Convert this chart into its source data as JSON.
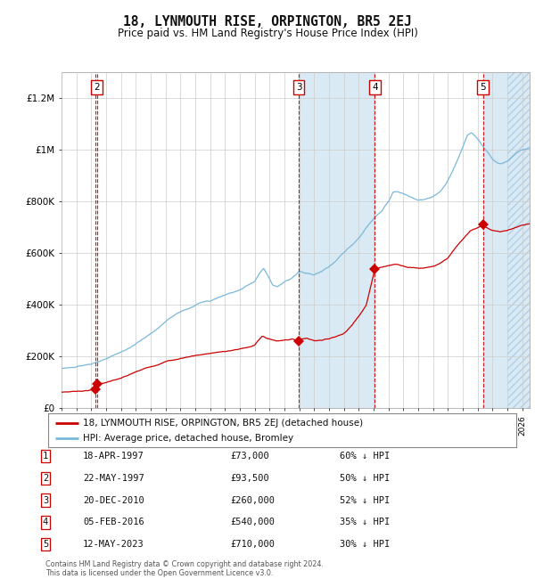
{
  "title": "18, LYNMOUTH RISE, ORPINGTON, BR5 2EJ",
  "subtitle": "Price paid vs. HM Land Registry's House Price Index (HPI)",
  "legend_line1": "18, LYNMOUTH RISE, ORPINGTON, BR5 2EJ (detached house)",
  "legend_line2": "HPI: Average price, detached house, Bromley",
  "footer1": "Contains HM Land Registry data © Crown copyright and database right 2024.",
  "footer2": "This data is licensed under the Open Government Licence v3.0.",
  "transactions": [
    {
      "num": 1,
      "date": "18-APR-1997",
      "price": 73000,
      "rel": "60% ↓ HPI",
      "x_year": 1997.29
    },
    {
      "num": 2,
      "date": "22-MAY-1997",
      "price": 93500,
      "rel": "50% ↓ HPI",
      "x_year": 1997.38
    },
    {
      "num": 3,
      "date": "20-DEC-2010",
      "price": 260000,
      "rel": "52% ↓ HPI",
      "x_year": 2010.96
    },
    {
      "num": 4,
      "date": "05-FEB-2016",
      "price": 540000,
      "rel": "35% ↓ HPI",
      "x_year": 2016.09
    },
    {
      "num": 5,
      "date": "12-MAY-2023",
      "price": 710000,
      "rel": "30% ↓ HPI",
      "x_year": 2023.36
    }
  ],
  "xmin": 1995.0,
  "xmax": 2026.5,
  "ymin": 0,
  "ymax": 1300000,
  "yticks": [
    0,
    200000,
    400000,
    600000,
    800000,
    1000000,
    1200000
  ],
  "ytick_labels": [
    "£0",
    "£200K",
    "£400K",
    "£600K",
    "£800K",
    "£1M",
    "£1.2M"
  ],
  "hpi_color": "#7ab8d9",
  "price_color": "#cc0000",
  "bg_color": "#ffffff",
  "grid_color": "#cccccc",
  "shade_color": "#daeaf5",
  "hatch_start": 2025.0,
  "table_rows": [
    [
      "1",
      "18-APR-1997",
      "£73,000",
      "60% ↓ HPI"
    ],
    [
      "2",
      "22-MAY-1997",
      "£93,500",
      "50% ↓ HPI"
    ],
    [
      "3",
      "20-DEC-2010",
      "£260,000",
      "52% ↓ HPI"
    ],
    [
      "4",
      "05-FEB-2016",
      "£540,000",
      "35% ↓ HPI"
    ],
    [
      "5",
      "12-MAY-2023",
      "£710,000",
      "30% ↓ HPI"
    ]
  ]
}
